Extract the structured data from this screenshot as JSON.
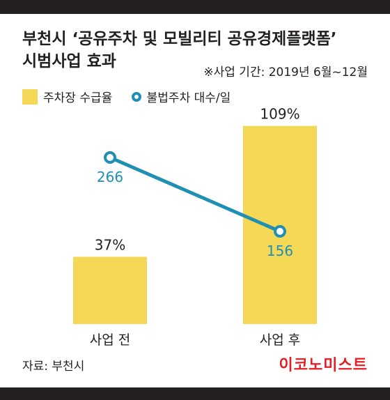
{
  "title_line1": "부천시 ‘공유주차 및 모빌리티 공유경제플랫폼’",
  "title_line2": "시범사업 효과",
  "note": "※사업 기간: 2019년 6월~12월",
  "legend": {
    "bar": "주차장 수급율",
    "line": "불법주차 대수/일"
  },
  "source": "자료: 부천시",
  "brand": "이코노미스트",
  "colors": {
    "bar": "#f5d956",
    "line": "#1f8fb4",
    "text": "#231f20",
    "brand": "#e31e24",
    "dark_bar": "#231f20"
  },
  "chart_data": {
    "type": "bar",
    "categories": [
      "사업 전",
      "사업 후"
    ],
    "series": [
      {
        "name": "주차장 수급율",
        "type": "bar",
        "values": [
          37,
          109
        ],
        "labels": [
          "37%",
          "109%"
        ],
        "unit": "%"
      },
      {
        "name": "불법주차 대수/일",
        "type": "line",
        "values": [
          266,
          156
        ],
        "labels": [
          "266",
          "156"
        ]
      }
    ],
    "title": "부천시 ‘공유주차 및 모빌리티 공유경제플랫폼’ 시범사업 효과",
    "xlabel": "",
    "ylabel": "",
    "grid": false,
    "legend_position": "top-left"
  }
}
